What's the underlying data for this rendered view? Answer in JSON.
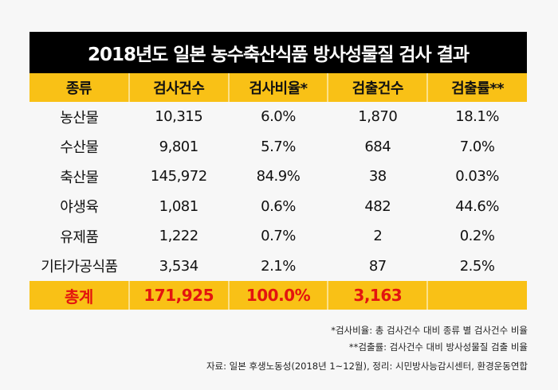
{
  "title": "2018년도 일본 농수축산식품 방사성물질 검사 결과",
  "headers": [
    "종류",
    "검사건수",
    "검사비율*",
    "검출건수",
    "검출률**"
  ],
  "rows": [
    [
      "농산물",
      "10,315",
      "6.0%",
      "1,870",
      "18.1%"
    ],
    [
      "수산물",
      "9,801",
      "5.7%",
      "684",
      "7.0%"
    ],
    [
      "축산물",
      "145,972",
      "84.9%",
      "38",
      "0.03%"
    ],
    [
      "야생육",
      "1,081",
      "0.6%",
      "482",
      "44.6%"
    ],
    [
      "유제품",
      "1,222",
      "0.7%",
      "2",
      "0.2%"
    ],
    [
      "기타가공식품",
      "3,534",
      "2.1%",
      "87",
      "2.5%"
    ]
  ],
  "total": [
    "총계",
    "171,925",
    "100.0%",
    "3,163",
    ""
  ],
  "notes": [
    "*검사비율: 총 검사건수 대비 종류 별 검사건수 비율",
    "**검출률: 검사건수 대비 방사성물질 검출 비율"
  ],
  "source": "자료: 일본 후생노동성(2018년 1~12월), 정리: 시민방사능감시센터, 환경운동연합"
}
